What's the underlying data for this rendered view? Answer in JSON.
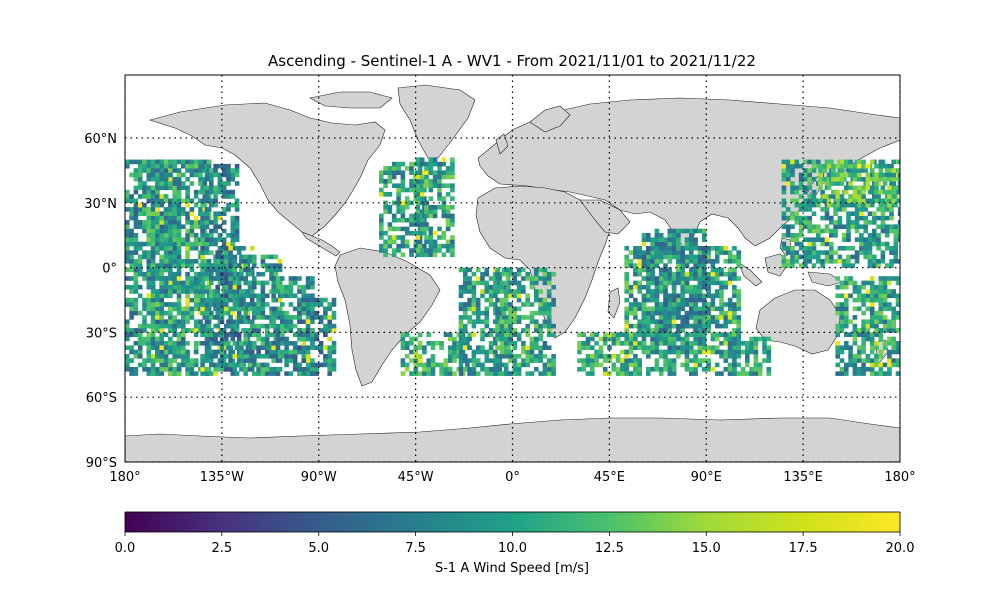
{
  "title": "Ascending - Sentinel-1 A - WV1 - From 2021/11/01 to 2021/11/22",
  "map": {
    "projection": "PlateCarree",
    "lon_range": [
      -180,
      180
    ],
    "lat_range": [
      -90,
      90
    ],
    "land_color": "#d3d3d3",
    "coast_color": "#000000",
    "gridlines": "dotted",
    "lat_ticks": [
      {
        "value": 60,
        "label": "60°N"
      },
      {
        "value": 30,
        "label": "30°N"
      },
      {
        "value": 0,
        "label": "0°"
      },
      {
        "value": -30,
        "label": "30°S"
      },
      {
        "value": -60,
        "label": "60°S"
      },
      {
        "value": -90,
        "label": "90°S"
      }
    ],
    "lon_ticks": [
      {
        "value": -180,
        "label": "180°"
      },
      {
        "value": -135,
        "label": "135°W"
      },
      {
        "value": -90,
        "label": "90°W"
      },
      {
        "value": -45,
        "label": "45°W"
      },
      {
        "value": 0,
        "label": "0°"
      },
      {
        "value": 45,
        "label": "45°E"
      },
      {
        "value": 90,
        "label": "90°E"
      },
      {
        "value": 135,
        "label": "135°E"
      },
      {
        "value": 180,
        "label": "180°"
      }
    ]
  },
  "colorbar": {
    "label": "S-1 A Wind Speed [m/s]",
    "colormap": "viridis",
    "min": 0,
    "max": 20,
    "ticks": [
      "0.0",
      "2.5",
      "5.0",
      "7.5",
      "10.0",
      "12.5",
      "15.0",
      "17.5",
      "20.0"
    ]
  },
  "data_coverage": {
    "lat_range": [
      -50,
      50
    ],
    "swaths": [
      {
        "lon_range": [
          -180,
          -155
        ],
        "lat_range": [
          -50,
          50
        ],
        "mean_speed": 9
      },
      {
        "lon_range": [
          -170,
          -140
        ],
        "lat_range": [
          -50,
          50
        ],
        "mean_speed": 10
      },
      {
        "lon_range": [
          -145,
          -128
        ],
        "lat_range": [
          -50,
          48
        ],
        "mean_speed": 9
      },
      {
        "lon_range": [
          -138,
          -120
        ],
        "lat_range": [
          -48,
          10
        ],
        "mean_speed": 8
      },
      {
        "lon_range": [
          -127,
          -108
        ],
        "lat_range": [
          -50,
          5
        ],
        "mean_speed": 9
      },
      {
        "lon_range": [
          -112,
          -92
        ],
        "lat_range": [
          -50,
          -5
        ],
        "mean_speed": 9
      },
      {
        "lon_range": [
          -100,
          -82
        ],
        "lat_range": [
          -50,
          -15
        ],
        "mean_speed": 8
      },
      {
        "lon_range": [
          -62,
          -40
        ],
        "lat_range": [
          5,
          48
        ],
        "mean_speed": 10
      },
      {
        "lon_range": [
          -45,
          -28
        ],
        "lat_range": [
          5,
          50
        ],
        "mean_speed": 10
      },
      {
        "lon_range": [
          -52,
          -20
        ],
        "lat_range": [
          -50,
          -30
        ],
        "mean_speed": 11
      },
      {
        "lon_range": [
          -25,
          -2
        ],
        "lat_range": [
          -50,
          0
        ],
        "mean_speed": 10
      },
      {
        "lon_range": [
          -8,
          20
        ],
        "lat_range": [
          -50,
          0
        ],
        "mean_speed": 10
      },
      {
        "lon_range": [
          30,
          58
        ],
        "lat_range": [
          -50,
          -30
        ],
        "mean_speed": 11
      },
      {
        "lon_range": [
          52,
          105
        ],
        "lat_range": [
          -50,
          10
        ],
        "mean_speed": 10
      },
      {
        "lon_range": [
          60,
          90
        ],
        "lat_range": [
          -40,
          18
        ],
        "mean_speed": 9
      },
      {
        "lon_range": [
          100,
          120
        ],
        "lat_range": [
          -50,
          -32
        ],
        "mean_speed": 10
      },
      {
        "lon_range": [
          125,
          180
        ],
        "lat_range": [
          0,
          50
        ],
        "mean_speed": 10
      },
      {
        "lon_range": [
          142,
          178
        ],
        "lat_range": [
          28,
          50
        ],
        "mean_speed": 12
      },
      {
        "lon_range": [
          150,
          180
        ],
        "lat_range": [
          -50,
          -5
        ],
        "mean_speed": 10
      }
    ]
  }
}
